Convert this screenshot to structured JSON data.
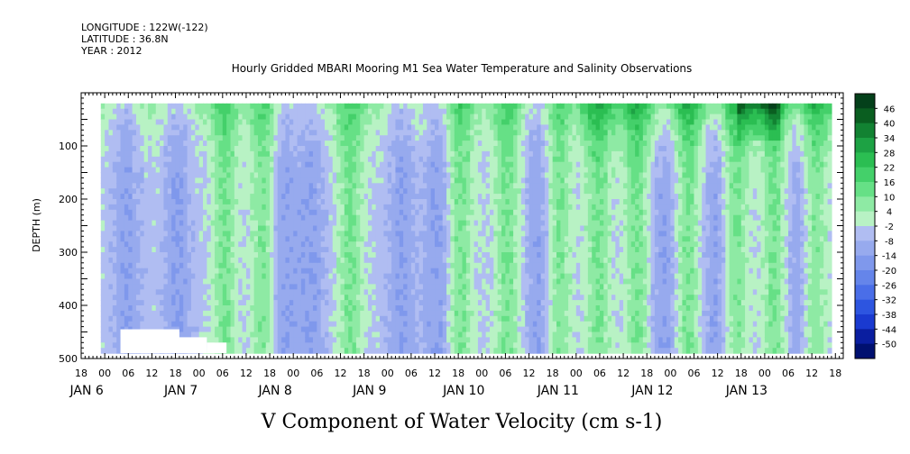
{
  "header": {
    "longitude": "LONGITUDE : 122W(-122)",
    "latitude": "LATITUDE : 36.8N",
    "year": "YEAR : 2012"
  },
  "chart_data": {
    "type": "heatmap",
    "title": "Hourly Gridded MBARI Mooring M1 Sea Water Temperature and Salinity Observations",
    "xlabel": "V Component of Water Velocity (cm s-1)",
    "ylabel": "DEPTH (m)",
    "y_axis": {
      "range": [
        0,
        500
      ],
      "reversed": true,
      "ticks": [
        100,
        200,
        300,
        400,
        500
      ],
      "tick_labels": [
        "100",
        "200",
        "300",
        "400",
        "500"
      ]
    },
    "x_axis": {
      "range_hours": [
        -6,
        188
      ],
      "hour_ticks": [
        -6,
        0,
        6,
        12,
        18,
        24,
        30,
        36,
        42,
        48,
        54,
        60,
        66,
        72,
        78,
        84,
        90,
        96,
        102,
        108,
        114,
        120,
        126,
        132,
        138,
        144,
        150,
        156,
        162,
        168,
        174,
        180,
        186
      ],
      "hour_labels": [
        "18",
        "00",
        "06",
        "12",
        "18",
        "00",
        "06",
        "12",
        "18",
        "00",
        "06",
        "12",
        "18",
        "00",
        "06",
        "12",
        "18",
        "00",
        "06",
        "12",
        "18",
        "00",
        "06",
        "12",
        "18",
        "00",
        "06",
        "12",
        "18",
        "00",
        "06",
        "12",
        "18"
      ],
      "date_ticks": [
        0,
        24,
        48,
        72,
        96,
        120,
        144,
        168
      ],
      "date_labels": [
        "JAN  6",
        "JAN  7",
        "JAN  8",
        "JAN  9",
        "JAN 10",
        "JAN 11",
        "JAN 12",
        "JAN 13"
      ]
    },
    "colorbar": {
      "levels": [
        -50,
        -44,
        -38,
        -32,
        -26,
        -20,
        -14,
        -8,
        -2,
        4,
        10,
        16,
        22,
        28,
        34,
        40,
        46
      ],
      "level_labels": [
        "-50",
        "-44",
        "-38",
        "-32",
        "-26",
        "-20",
        "-14",
        "-8",
        "-2",
        "4",
        "10",
        "16",
        "22",
        "28",
        "34",
        "40",
        "46"
      ],
      "colors": [
        "#001070",
        "#0a1ea0",
        "#1a3ad0",
        "#2d55e0",
        "#4a6ee8",
        "#6585ea",
        "#7f98ec",
        "#97aaee",
        "#b0bdf2",
        "#b8f2c4",
        "#8eeaa4",
        "#66e086",
        "#44d06a",
        "#2bbe52",
        "#1da244",
        "#128232",
        "#0a5e20",
        "#04401a"
      ]
    },
    "data_coverage": {
      "start_hour": -1,
      "end_hour": 185,
      "depth_top": 20,
      "depth_bottom": 490
    },
    "green_bands_hours": [
      30,
      40,
      62,
      90,
      102,
      115,
      125,
      135,
      148,
      160,
      170,
      180
    ],
    "blue_bands_hours": [
      5,
      18,
      45,
      52,
      75,
      84,
      110,
      142,
      155,
      176
    ]
  }
}
